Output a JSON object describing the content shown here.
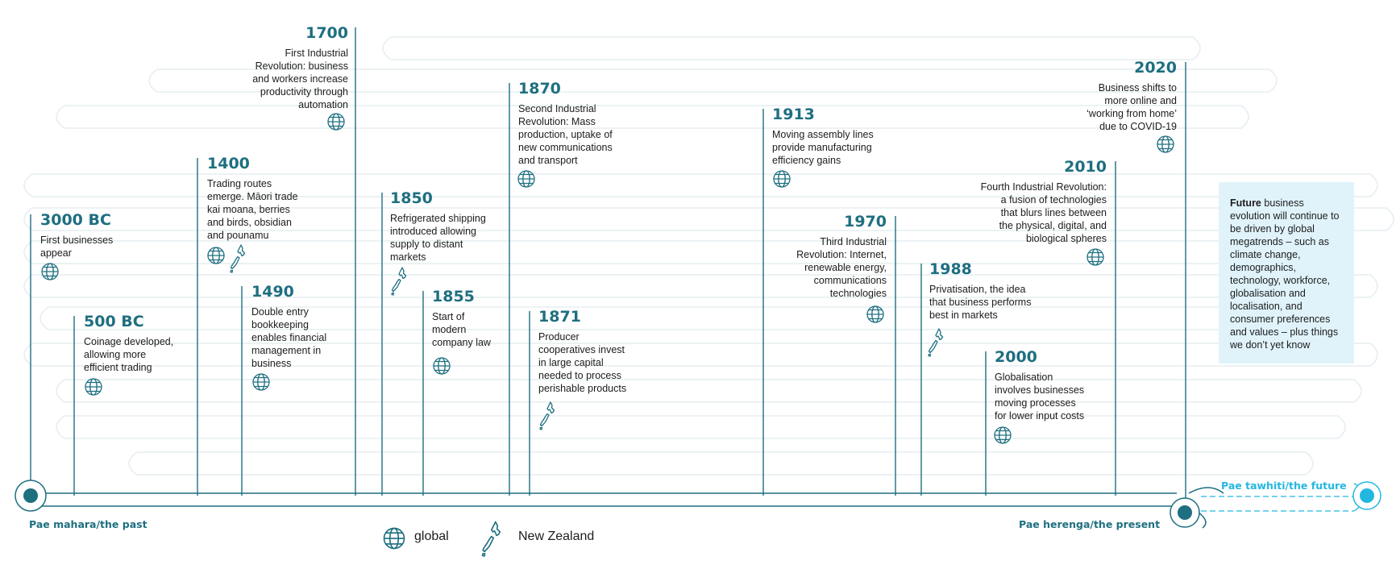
{
  "colors": {
    "line": "#1e6f80",
    "faint": "#e6eef1",
    "accent": "#23b7e0",
    "future_bg": "#e0f3fb",
    "text": "#1c1c1c"
  },
  "events": [
    {
      "year": "3000 BC",
      "desc": "First businesses\nappear",
      "icon": "globe-icon"
    },
    {
      "year": "500 BC",
      "desc": "Coinage developed,\nallowing more\nefficient trading",
      "icon": "globe-icon"
    },
    {
      "year": "1400",
      "desc": "Trading routes\nemerge. Māori trade\nkai moana, berries\nand birds, obsidian\nand pounamu",
      "icon": "globe-icon+new-zealand-icon"
    },
    {
      "year": "1490",
      "desc": "Double entry\nbookkeeping\nenables financial\nmanagement in\nbusiness",
      "icon": "globe-icon"
    },
    {
      "year": "1700",
      "desc": "First Industrial\nRevolution: business\nand workers increase\nproductivity through\nautomation",
      "icon": "globe-icon"
    },
    {
      "year": "1850",
      "desc": "Refrigerated shipping\nintroduced allowing\nsupply to distant\nmarkets",
      "icon": "new-zealand-icon"
    },
    {
      "year": "1855",
      "desc": "Start of\nmodern\ncompany law",
      "icon": "globe-icon"
    },
    {
      "year": "1870",
      "desc": "Second Industrial\nRevolution: Mass\nproduction, uptake of\nnew communications\nand transport",
      "icon": "globe-icon"
    },
    {
      "year": "1871",
      "desc": "Producer\ncooperatives invest\nin large capital\nneeded to process\nperishable products",
      "icon": "new-zealand-icon"
    },
    {
      "year": "1913",
      "desc": "Moving assembly lines\nprovide manufacturing\nefficiency gains",
      "icon": "globe-icon"
    },
    {
      "year": "1970",
      "desc": "Third Industrial\nRevolution: Internet,\nrenewable energy,\ncommunications\ntechnologies",
      "icon": "globe-icon"
    },
    {
      "year": "1988",
      "desc": "Privatisation, the idea\nthat business performs\nbest in markets",
      "icon": "new-zealand-icon"
    },
    {
      "year": "2000",
      "desc": "Globalisation\ninvolves businesses\nmoving processes\nfor lower input costs",
      "icon": "globe-icon"
    },
    {
      "year": "2010",
      "desc": "Fourth Industrial Revolution:\na fusion of technologies\nthat blurs lines between\nthe physical, digital, and\nbiological spheres",
      "icon": "globe-icon"
    },
    {
      "year": "2020",
      "desc": "Business shifts to\nmore online and\n‘working from home’\ndue to COVID-19",
      "icon": "globe-icon"
    }
  ],
  "eras": {
    "past": "Pae mahara/the past",
    "present": "Pae herenga/the present",
    "future": "Pae tawhiti/the future"
  },
  "future_box": {
    "lead": "Future",
    "text": " business evolution will continue to be driven by global megatrends – such as climate change, demographics, technology, workforce, globalisation and localisation, and consumer preferences and values – plus things we don’t yet know"
  },
  "legend": {
    "global": "global",
    "nz": "New Zealand"
  }
}
